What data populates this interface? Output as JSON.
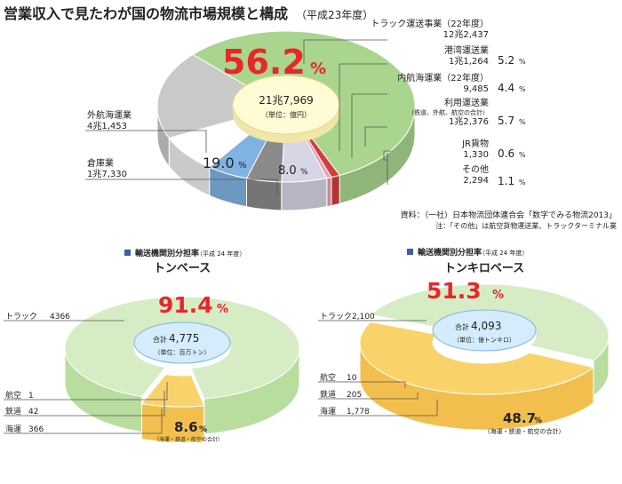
{
  "header": {
    "title": "営業収入で見たわが国の物流市場規模と構成",
    "year": "（平成23年度）"
  },
  "colors": {
    "truck": "#a9d58e",
    "truck_light": "#d6ecc4",
    "other_sea": "#bdbdbd",
    "warehouse": "#d6d6d6",
    "port": "#ffffff",
    "coastal": "#80b3e3",
    "intl": "#8d8d8d",
    "forwarding": "#c9c9c9",
    "jr": "#e6a0b4",
    "other": "#d23d3d",
    "center": "#fffbd4",
    "yellow": "#f9d26a",
    "red": "#e8262b",
    "bullet": "#3f5fa8"
  },
  "chart_data": [
    {
      "type": "pie",
      "title": "営業収入で見たわが国の物流市場規模と構成",
      "subtitle": "（平成23年度）",
      "center_total": "21兆7,969",
      "center_unit": "（単位：億円）",
      "slices": [
        {
          "label": "トラック運送事業（22年度）",
          "value": "12兆2,437",
          "percent": 56.2,
          "percent_text": "56.2",
          "unit": "%"
        },
        {
          "label": "港湾運送業",
          "value": "1兆1,264",
          "percent": 5.2,
          "percent_text": "5.2",
          "unit": "%"
        },
        {
          "label": "内航海運業（22年度）",
          "value": "9,485",
          "percent": 4.4,
          "percent_text": "4.4",
          "unit": "%"
        },
        {
          "label": "利用運送業",
          "sublabel": "（鉄道、外航、航空の合計）",
          "value": "1兆2,376",
          "percent": 5.7,
          "percent_text": "5.7",
          "unit": "%"
        },
        {
          "label": "JR貨物",
          "value": "1,330",
          "percent": 0.6,
          "percent_text": "0.6",
          "unit": "%"
        },
        {
          "label": "その他",
          "value": "2,294",
          "percent": 1.1,
          "percent_text": "1.1",
          "unit": "%"
        },
        {
          "label": "倉庫業",
          "value": "1兆7,330",
          "percent": 8.0,
          "percent_text": "8.0",
          "unit": "%"
        },
        {
          "label": "外航海運業",
          "value": "4兆1,453",
          "percent": 19.0,
          "percent_text": "19.0",
          "unit": "%"
        }
      ],
      "source": "資料：（一社）日本物流団体連合会「数字でみる物流2013」",
      "note": "注：「その他」は航空貨物運送業、トラックターミナル業"
    },
    {
      "type": "pie",
      "section_title": "輸送機関別分担率",
      "section_year": "（平成 24 年度）",
      "title": "トンベース",
      "center_total_label": "合計",
      "center_total": "4,775",
      "center_unit": "（単位：百万トン）",
      "big_percent": "91.4",
      "small_percent": "8.6",
      "unit": "%",
      "small_note": "（海運・鉄道・航空の合計）",
      "slices": [
        {
          "label": "トラック",
          "value": 4366
        },
        {
          "label": "航空",
          "value": 1
        },
        {
          "label": "鉄道",
          "value": 42
        },
        {
          "label": "海運",
          "value": 366
        }
      ]
    },
    {
      "type": "pie",
      "section_title": "輸送機関別分担率",
      "section_year": "（平成 24 年度）",
      "title": "トンキロベース",
      "center_total_label": "合計",
      "center_total": "4,093",
      "center_unit": "（単位：億トンキロ）",
      "big_percent": "51.3",
      "small_percent": "48.7",
      "unit": "%",
      "small_note": "（海運・鉄道・航空の合計）",
      "slices": [
        {
          "label": "トラック",
          "value": "2,100"
        },
        {
          "label": "航空",
          "value": "10"
        },
        {
          "label": "鉄道",
          "value": "205"
        },
        {
          "label": "海運",
          "value": "1,778"
        }
      ]
    }
  ]
}
